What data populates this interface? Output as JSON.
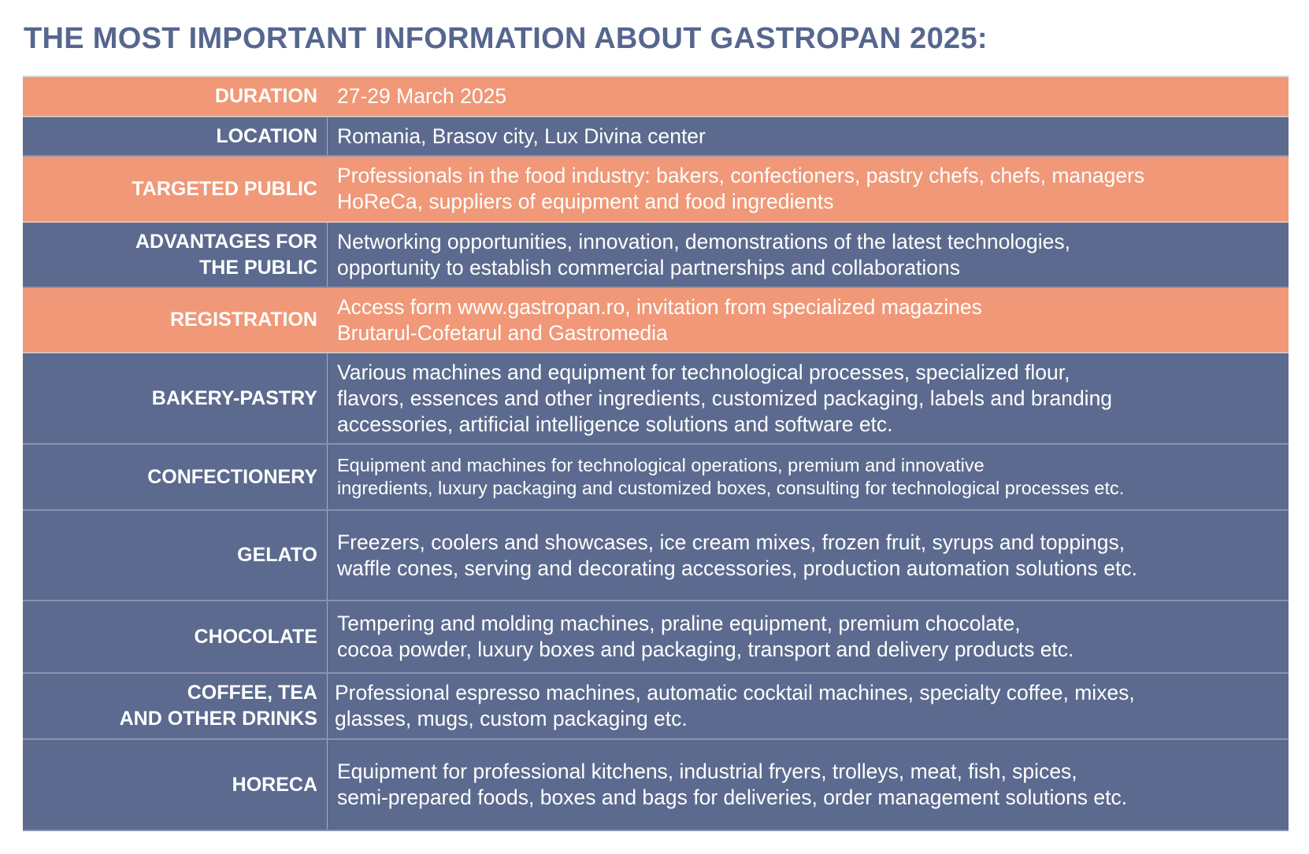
{
  "title": "THE MOST IMPORTANT INFORMATION ABOUT GASTROPAN 2025:",
  "colors": {
    "orange": "#f09878",
    "blue": "#5b6a8e",
    "title": "#56668f"
  },
  "rows": [
    {
      "label": "DURATION",
      "value": "27-29 March 2025",
      "color": "orange"
    },
    {
      "label": "LOCATION",
      "value": "Romania, Brasov city, Lux Divina center",
      "color": "blue"
    },
    {
      "label": "TARGETED PUBLIC",
      "value": "Professionals in the food industry: bakers, confectioners, pastry chefs, chefs, managers\nHoReCa, suppliers of equipment and food ingredients",
      "color": "orange"
    },
    {
      "label": "ADVANTAGES FOR\nTHE PUBLIC",
      "value": "Networking opportunities, innovation, demonstrations of the latest technologies,\nopportunity to establish commercial partnerships and collaborations",
      "color": "blue"
    },
    {
      "label": "REGISTRATION",
      "value": "Access form www.gastropan.ro, invitation from specialized magazines\nBrutarul-Cofetarul and Gastromedia",
      "color": "orange"
    },
    {
      "label": "BAKERY-PASTRY",
      "value": "Various machines and equipment for technological processes, specialized flour,\nflavors, essences and other ingredients, customized packaging, labels and branding\naccessories, artificial intelligence solutions and software etc.",
      "color": "blue"
    },
    {
      "label": "CONFECTIONERY",
      "value": "Equipment and machines for technological operations, premium and innovative\ningredients, luxury packaging and customized boxes, consulting for technological processes etc.",
      "color": "blue"
    },
    {
      "label": "GELATO",
      "value": "Freezers, coolers and showcases, ice cream mixes, frozen fruit, syrups and toppings,\nwaffle cones, serving and decorating accessories, production automation solutions etc.",
      "color": "blue"
    },
    {
      "label": "CHOCOLATE",
      "value": "Tempering and molding machines, praline equipment, premium chocolate,\ncocoa powder, luxury boxes and packaging, transport and delivery products etc.",
      "color": "blue"
    },
    {
      "label": "COFFEE, TEA\nAND OTHER DRINKS",
      "value": "Professional espresso machines, automatic cocktail machines, specialty coffee, mixes,\nglasses, mugs, custom packaging etc.",
      "color": "blue"
    },
    {
      "label": "HORECA",
      "value": "Equipment for professional kitchens, industrial fryers, trolleys, meat, fish, spices,\nsemi-prepared foods, boxes and bags for deliveries, order management solutions etc.",
      "color": "blue"
    }
  ]
}
